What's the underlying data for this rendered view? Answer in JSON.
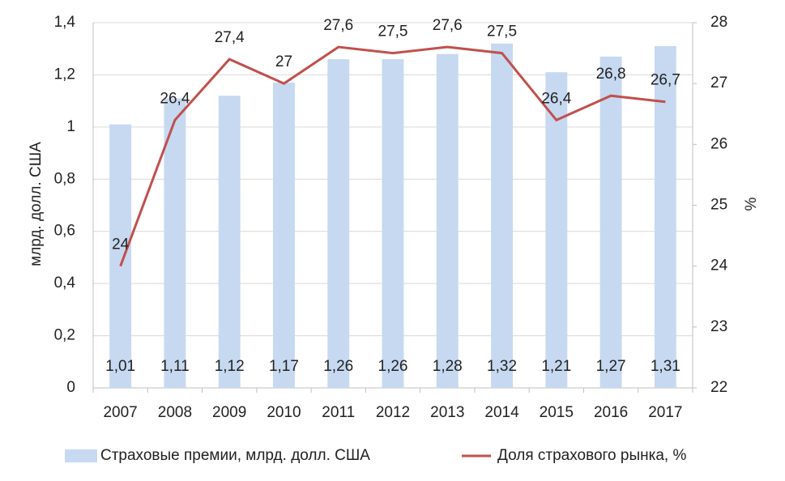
{
  "chart_data": {
    "type": "bar",
    "categories": [
      "2007",
      "2008",
      "2009",
      "2010",
      "2011",
      "2012",
      "2013",
      "2014",
      "2015",
      "2016",
      "2017"
    ],
    "y_label": "млрд. долл. США",
    "y2_label": "%",
    "ylim": [
      0,
      1.4
    ],
    "yticks": [
      0,
      {
        "value": 0.2,
        "label": "0,2"
      },
      {
        "value": 0.4,
        "label": "0,4"
      },
      {
        "value": 0.6,
        "label": "0,6"
      },
      {
        "value": 0.8,
        "label": "0,8"
      },
      1,
      {
        "value": 1.2,
        "label": "1,2"
      },
      {
        "value": 1.4,
        "label": "1,4"
      }
    ],
    "y2lim": [
      22,
      28
    ],
    "y2ticks": [
      22,
      23,
      24,
      25,
      26,
      27,
      28
    ],
    "grid": true,
    "legend": "bottom",
    "series": [
      {
        "name": "Страховые премии, млрд. долл. США",
        "type": "bar",
        "color": "#c6d9f1",
        "values": [
          1.01,
          1.11,
          1.12,
          1.17,
          1.26,
          1.26,
          1.28,
          1.32,
          1.21,
          1.27,
          1.31
        ],
        "value_labels": [
          "1,01",
          "1,11",
          "1,12",
          "1,17",
          "1,26",
          "1,26",
          "1,28",
          "1,32",
          "1,21",
          "1,27",
          "1,31"
        ]
      },
      {
        "name": "Доля страхового рынка, %",
        "type": "line",
        "axis": "y2",
        "color": "#c0504d",
        "values": [
          24,
          26.4,
          27.4,
          27,
          27.6,
          27.5,
          27.6,
          27.5,
          26.4,
          26.8,
          26.7
        ],
        "value_labels": [
          "24",
          "26,4",
          "27,4",
          "27",
          "27,6",
          "27,5",
          "27,6",
          "27,5",
          "26,4",
          "26,8",
          "26,7"
        ]
      }
    ]
  }
}
